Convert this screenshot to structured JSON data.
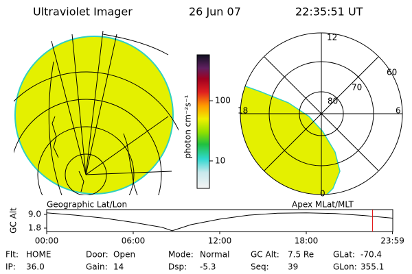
{
  "header": {
    "title": "Ultraviolet Imager",
    "date": "26 Jun 07",
    "time": "22:35:51 UT"
  },
  "colorbar": {
    "label": "photon cm⁻²s⁻¹",
    "scale": "log",
    "lim": [
      3.5,
      580
    ],
    "ticks": [
      10,
      100
    ]
  },
  "geographic": {
    "label": "Geographic Lat/Lon"
  },
  "polar": {
    "label": "Apex MLat/MLT",
    "mlt_labels": [
      "12",
      "6",
      "0",
      "18"
    ],
    "mlat_labels": [
      "60",
      "70",
      "80"
    ]
  },
  "altitude": {
    "title": "GC Alt",
    "x": [
      0,
      2,
      4,
      6,
      8,
      8.7,
      10,
      12,
      14,
      16,
      18,
      20,
      22,
      24
    ],
    "values": [
      9.8,
      8.6,
      7.0,
      4.8,
      2.2,
      0.4,
      3.6,
      6.5,
      8.6,
      9.6,
      9.8,
      9.4,
      8.4,
      7.0
    ],
    "xlim": [
      0,
      24
    ],
    "xticks": [
      {
        "value": 0,
        "label": "00:00"
      },
      {
        "value": 6,
        "label": "06:00"
      },
      {
        "value": 12,
        "label": "12:00"
      },
      {
        "value": 18,
        "label": "18:00"
      },
      {
        "value": 23.98,
        "label": "23:59"
      }
    ],
    "ylim": [
      0,
      11.5
    ],
    "yticks": [
      {
        "value": 9,
        "label": "9.0"
      },
      {
        "value": 1.8,
        "label": "1.8"
      }
    ],
    "marker": 22.6,
    "marker_color": "#e00000"
  },
  "status": [
    [
      [
        "Flt:",
        "HOME"
      ],
      [
        "IP:",
        "36.0"
      ]
    ],
    [
      [
        "Door:",
        "Open"
      ],
      [
        "Gain:",
        "14"
      ]
    ],
    [
      [
        "Mode:",
        "Normal"
      ],
      [
        "Dsp:",
        "-5.3"
      ]
    ],
    [
      [
        "GC Alt:",
        "7.5 Re"
      ],
      [
        "Seq:",
        "39"
      ]
    ],
    [
      [
        "GLat:",
        "-70.4"
      ],
      [
        "GLon:",
        "355.1"
      ]
    ]
  ]
}
